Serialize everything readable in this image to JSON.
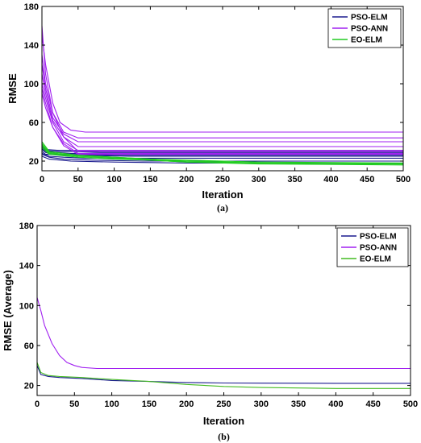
{
  "chart_data": [
    {
      "type": "line",
      "caption": "(a)",
      "xlabel": "Iteration",
      "ylabel": "RMSE",
      "xlim": [
        0,
        500
      ],
      "ylim": [
        10,
        180
      ],
      "xticks": [
        0,
        50,
        100,
        150,
        200,
        250,
        300,
        350,
        400,
        450,
        500
      ],
      "yticks": [
        20,
        60,
        100,
        140,
        180
      ],
      "legend_position": "top-right",
      "series": [
        {
          "name": "PSO-ELM",
          "color": "#1b1b8f",
          "runs": [
            {
              "x": [
                0,
                5,
                15,
                30,
                60,
                120,
                500
              ],
              "y": [
                30,
                27,
                27,
                26,
                26,
                25,
                25
              ]
            },
            {
              "x": [
                0,
                5,
                20,
                40,
                80,
                150,
                500
              ],
              "y": [
                33,
                30,
                29,
                28,
                28,
                28,
                28
              ]
            },
            {
              "x": [
                0,
                5,
                20,
                40,
                80,
                500
              ],
              "y": [
                35,
                31,
                30,
                30,
                29,
                29
              ]
            },
            {
              "x": [
                0,
                10,
                30,
                60,
                120,
                500
              ],
              "y": [
                28,
                25,
                24,
                23,
                23,
                23
              ]
            },
            {
              "x": [
                0,
                10,
                30,
                70,
                140,
                500
              ],
              "y": [
                27,
                24,
                22,
                21,
                20,
                20
              ]
            },
            {
              "x": [
                0,
                10,
                40,
                100,
                200,
                500
              ],
              "y": [
                25,
                22,
                20,
                19,
                18,
                18
              ]
            },
            {
              "x": [
                0,
                5,
                25,
                60,
                130,
                500
              ],
              "y": [
                36,
                32,
                31,
                31,
                31,
                31
              ]
            },
            {
              "x": [
                0,
                5,
                15,
                40,
                100,
                500
              ],
              "y": [
                32,
                29,
                27,
                27,
                26,
                26
              ]
            }
          ]
        },
        {
          "name": "PSO-ANN",
          "color": "#a020f0",
          "runs": [
            {
              "x": [
                0,
                5,
                15,
                25,
                40,
                60,
                500
              ],
              "y": [
                150,
                120,
                80,
                60,
                52,
                50,
                50
              ]
            },
            {
              "x": [
                0,
                5,
                15,
                30,
                50,
                500
              ],
              "y": [
                160,
                110,
                70,
                50,
                44,
                44
              ]
            },
            {
              "x": [
                0,
                5,
                15,
                30,
                50,
                500
              ],
              "y": [
                120,
                95,
                65,
                48,
                40,
                40
              ]
            },
            {
              "x": [
                0,
                5,
                15,
                30,
                50,
                500
              ],
              "y": [
                110,
                90,
                62,
                45,
                35,
                35
              ]
            },
            {
              "x": [
                0,
                5,
                15,
                30,
                50,
                500
              ],
              "y": [
                100,
                85,
                60,
                40,
                31,
                31
              ]
            },
            {
              "x": [
                0,
                5,
                15,
                30,
                50,
                500
              ],
              "y": [
                130,
                100,
                70,
                45,
                30,
                30
              ]
            },
            {
              "x": [
                0,
                5,
                15,
                30,
                50,
                500
              ],
              "y": [
                95,
                80,
                55,
                38,
                28,
                28
              ]
            },
            {
              "x": [
                0,
                5,
                15,
                30,
                50,
                500
              ],
              "y": [
                90,
                75,
                55,
                36,
                27,
                27
              ]
            }
          ]
        },
        {
          "name": "EO-ELM",
          "color": "#22cc22",
          "runs": [
            {
              "x": [
                0,
                10,
                50,
                100,
                150,
                200,
                300,
                500
              ],
              "y": [
                40,
                30,
                26,
                24,
                22,
                20,
                18,
                17
              ]
            },
            {
              "x": [
                0,
                10,
                50,
                100,
                150,
                200,
                300,
                500
              ],
              "y": [
                38,
                29,
                25,
                23,
                21,
                19,
                17,
                16
              ]
            },
            {
              "x": [
                0,
                10,
                50,
                100,
                150,
                200,
                300,
                500
              ],
              "y": [
                36,
                28,
                25,
                23,
                22,
                21,
                19,
                18
              ]
            },
            {
              "x": [
                0,
                10,
                50,
                100,
                150,
                200,
                300,
                500
              ],
              "y": [
                34,
                27,
                24,
                22,
                21,
                19,
                18,
                17
              ]
            },
            {
              "x": [
                0,
                10,
                50,
                100,
                150,
                200,
                300,
                500
              ],
              "y": [
                37,
                28,
                26,
                24,
                22,
                20,
                18,
                17
              ]
            }
          ]
        }
      ]
    },
    {
      "type": "line",
      "caption": "(b)",
      "xlabel": "Iteration",
      "ylabel": "RMSE (Average)",
      "xlim": [
        0,
        500
      ],
      "ylim": [
        10,
        180
      ],
      "xticks": [
        0,
        50,
        100,
        150,
        200,
        250,
        300,
        350,
        400,
        450,
        500
      ],
      "yticks": [
        20,
        60,
        100,
        140,
        180
      ],
      "legend_position": "top-right",
      "series": [
        {
          "name": "PSO-ELM",
          "color": "#1b1b8f",
          "x": [
            0,
            5,
            15,
            30,
            60,
            100,
            150,
            200,
            250,
            300,
            400,
            500
          ],
          "y": [
            40,
            31,
            29,
            28,
            27,
            25,
            24,
            23,
            22.5,
            22.3,
            22.2,
            22.2
          ]
        },
        {
          "name": "PSO-ANN",
          "color": "#a020f0",
          "x": [
            0,
            5,
            10,
            20,
            30,
            40,
            50,
            60,
            80,
            100,
            200,
            500
          ],
          "y": [
            108,
            95,
            80,
            62,
            50,
            43,
            40,
            38,
            37,
            37,
            37,
            37
          ]
        },
        {
          "name": "EO-ELM",
          "color": "#44bb22",
          "x": [
            0,
            5,
            15,
            30,
            60,
            100,
            150,
            200,
            250,
            300,
            350,
            400,
            500
          ],
          "y": [
            43,
            33,
            30,
            29,
            28,
            26,
            24,
            21,
            19,
            18,
            17.5,
            17,
            17
          ]
        }
      ]
    }
  ]
}
